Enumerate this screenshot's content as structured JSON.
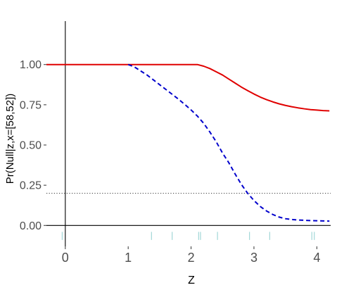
{
  "chart_data": {
    "type": "line",
    "title": "",
    "xlabel": "Z",
    "ylabel": "Pr(Null|z,x=[58,52])",
    "xlim": [
      -0.3,
      4.22
    ],
    "ylim": [
      -0.13,
      1.27
    ],
    "x_ticks": [
      "0",
      "1",
      "2",
      "3",
      "4"
    ],
    "y_ticks": [
      "0.00",
      "0.25",
      "0.50",
      "0.75",
      "1.00"
    ],
    "grid": false,
    "threshold": {
      "y": 0.2,
      "style": "dotted"
    },
    "rug": [
      -0.05,
      1.37,
      1.7,
      2.12,
      2.15,
      2.42,
      2.93,
      3.25,
      3.92,
      3.96
    ],
    "series": [
      {
        "color": "#e00000",
        "dash": "solid",
        "x": [
          -0.3,
          0.5,
          1.0,
          1.5,
          2.0,
          2.1,
          2.2,
          2.3,
          2.4,
          2.5,
          2.6,
          2.7,
          2.8,
          2.9,
          3.0,
          3.1,
          3.2,
          3.3,
          3.4,
          3.5,
          3.6,
          3.7,
          3.8,
          3.9,
          4.0,
          4.1,
          4.2
        ],
        "y": [
          1.0,
          1.0,
          1.0,
          1.0,
          1.0,
          1.0,
          0.99,
          0.975,
          0.955,
          0.935,
          0.91,
          0.885,
          0.86,
          0.838,
          0.817,
          0.798,
          0.782,
          0.768,
          0.756,
          0.746,
          0.738,
          0.731,
          0.725,
          0.72,
          0.717,
          0.714,
          0.712
        ]
      },
      {
        "color": "#0000cc",
        "dash": "dashed",
        "x": [
          1.0,
          1.1,
          1.2,
          1.3,
          1.4,
          1.5,
          1.6,
          1.7,
          1.8,
          1.9,
          2.0,
          2.1,
          2.2,
          2.3,
          2.4,
          2.5,
          2.6,
          2.7,
          2.8,
          2.9,
          3.0,
          3.1,
          3.2,
          3.3,
          3.4,
          3.5,
          3.6,
          3.7,
          3.8,
          3.9,
          4.0,
          4.1,
          4.2
        ],
        "y": [
          1.0,
          0.985,
          0.96,
          0.935,
          0.905,
          0.875,
          0.845,
          0.815,
          0.785,
          0.752,
          0.718,
          0.68,
          0.635,
          0.58,
          0.52,
          0.45,
          0.39,
          0.32,
          0.255,
          0.2,
          0.155,
          0.118,
          0.09,
          0.068,
          0.052,
          0.042,
          0.037,
          0.034,
          0.032,
          0.03,
          0.029,
          0.028,
          0.027
        ]
      }
    ]
  }
}
